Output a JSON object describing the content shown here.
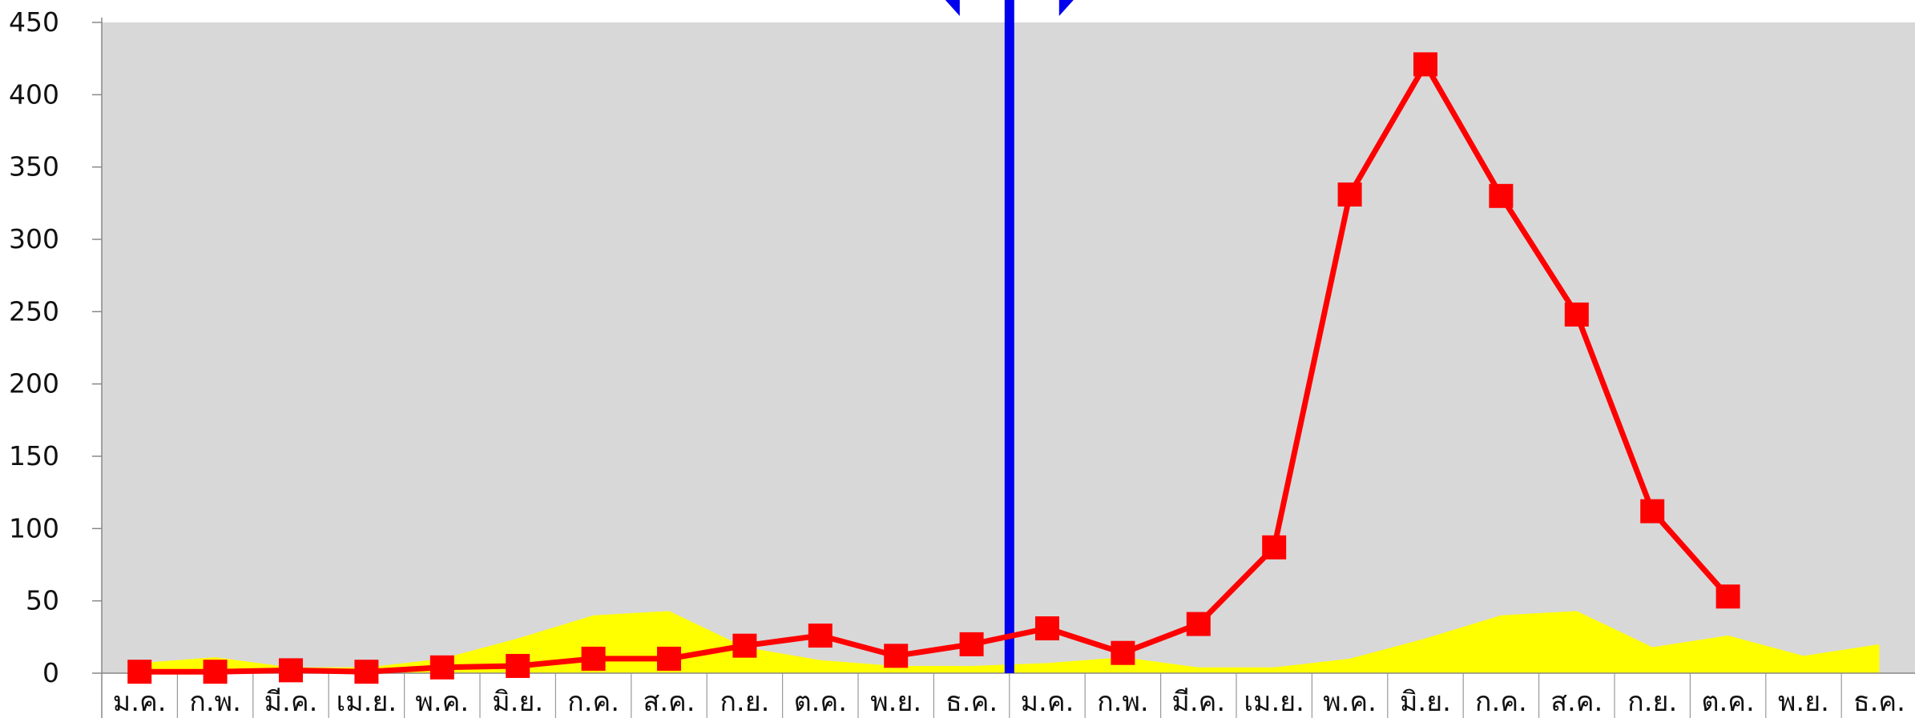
{
  "chart_data": {
    "type": "line",
    "categories": [
      "ม.ค.",
      "ก.พ.",
      "มี.ค.",
      "เม.ย.",
      "พ.ค.",
      "มิ.ย.",
      "ก.ค.",
      "ส.ค.",
      "ก.ย.",
      "ต.ค.",
      "พ.ย.",
      "ธ.ค.",
      "ม.ค.",
      "ก.พ.",
      "มี.ค.",
      "เม.ย.",
      "พ.ค.",
      "มิ.ย.",
      "ก.ค.",
      "ส.ค.",
      "ก.ย.",
      "ต.ค.",
      "พ.ย.",
      "ธ.ค."
    ],
    "series": [
      {
        "type": "area",
        "values": [
          7,
          11,
          4,
          4,
          10,
          24,
          40,
          43,
          18,
          9,
          5,
          5,
          7,
          11,
          4,
          4,
          10,
          24,
          40,
          43,
          18,
          26,
          12,
          20
        ]
      },
      {
        "type": "line",
        "values": [
          1,
          1,
          2,
          1,
          4,
          5,
          10,
          10,
          19,
          26,
          12,
          20,
          31,
          14,
          34,
          87,
          331,
          421,
          330,
          248,
          112,
          53,
          null,
          null
        ]
      }
    ],
    "ylim": [
      0,
      450
    ],
    "yticks": [
      0,
      50,
      100,
      150,
      200,
      250,
      300,
      350,
      400,
      450
    ],
    "divider_after_index": 11,
    "colors": {
      "plot_background": "#d8d8d8",
      "area": "#ffff00",
      "line": "#ff0000",
      "divider": "#0000ee",
      "gridline": "#ffffff"
    },
    "grid": false,
    "legend": "none"
  }
}
